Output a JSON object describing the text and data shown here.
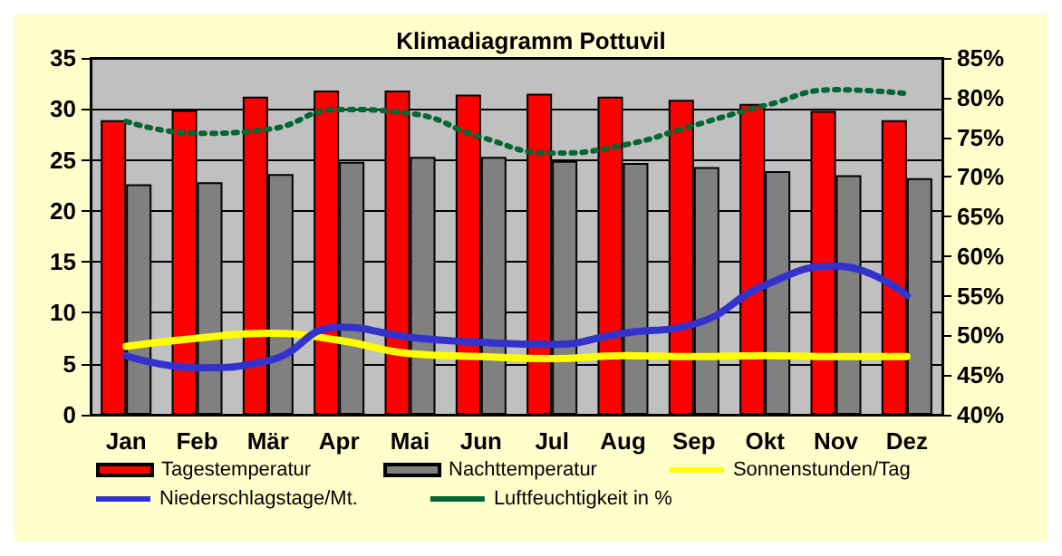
{
  "chart_data": {
    "type": "bar",
    "title": "Klimadiagramm Pottuvil",
    "categories": [
      "Jan",
      "Feb",
      "Mär",
      "Apr",
      "Mai",
      "Jun",
      "Jul",
      "Aug",
      "Sep",
      "Okt",
      "Nov",
      "Dez"
    ],
    "series": [
      {
        "name": "Tagestemperatur",
        "color": "#ff0000",
        "values": [
          28.9,
          29.9,
          31.2,
          31.8,
          31.8,
          31.4,
          31.5,
          31.2,
          30.9,
          30.5,
          29.8,
          28.9
        ]
      },
      {
        "name": "Nachttemperatur",
        "color": "#808080",
        "values": [
          22.6,
          22.8,
          23.6,
          24.8,
          25.3,
          25.3,
          24.9,
          24.7,
          24.3,
          23.9,
          23.5,
          23.2
        ]
      },
      {
        "name": "Sonnenstunden/Tag",
        "type": "line",
        "color": "#ffff00",
        "line_style": "solid",
        "values": [
          6.7,
          7.5,
          8.0,
          7.3,
          6.0,
          5.7,
          5.5,
          5.8,
          5.7,
          5.8,
          5.7,
          5.7
        ]
      },
      {
        "name": "Niederschlagstage/Mt.",
        "type": "line",
        "color": "#3333cc",
        "line_style": "solid",
        "values": [
          5.8,
          4.6,
          5.3,
          8.6,
          7.6,
          7.1,
          6.9,
          8.0,
          8.9,
          12.7,
          14.6,
          11.7
        ]
      },
      {
        "name": "Luftfeuchtigkeit in %",
        "type": "line",
        "color": "#006633",
        "line_style": "dotted",
        "axis": "y2",
        "values": [
          77,
          75.5,
          76,
          78.5,
          78,
          75,
          73,
          74,
          76.5,
          79,
          81,
          80.5
        ]
      }
    ],
    "ylim": [
      0,
      35
    ],
    "yticks": [
      0,
      5,
      10,
      15,
      20,
      25,
      30,
      35
    ],
    "y2lim": [
      40,
      85
    ],
    "y2ticks": [
      {
        "value": 40,
        "label": "40%"
      },
      {
        "value": 45,
        "label": "45%"
      },
      {
        "value": 50,
        "label": "50%"
      },
      {
        "value": 55,
        "label": "55%"
      },
      {
        "value": 60,
        "label": "60%"
      },
      {
        "value": 65,
        "label": "65%"
      },
      {
        "value": 70,
        "label": "70%"
      },
      {
        "value": 75,
        "label": "75%"
      },
      {
        "value": 80,
        "label": "80%"
      },
      {
        "value": 85,
        "label": "85%"
      }
    ],
    "grid": "y",
    "legend": "bottom",
    "marker": "none"
  }
}
